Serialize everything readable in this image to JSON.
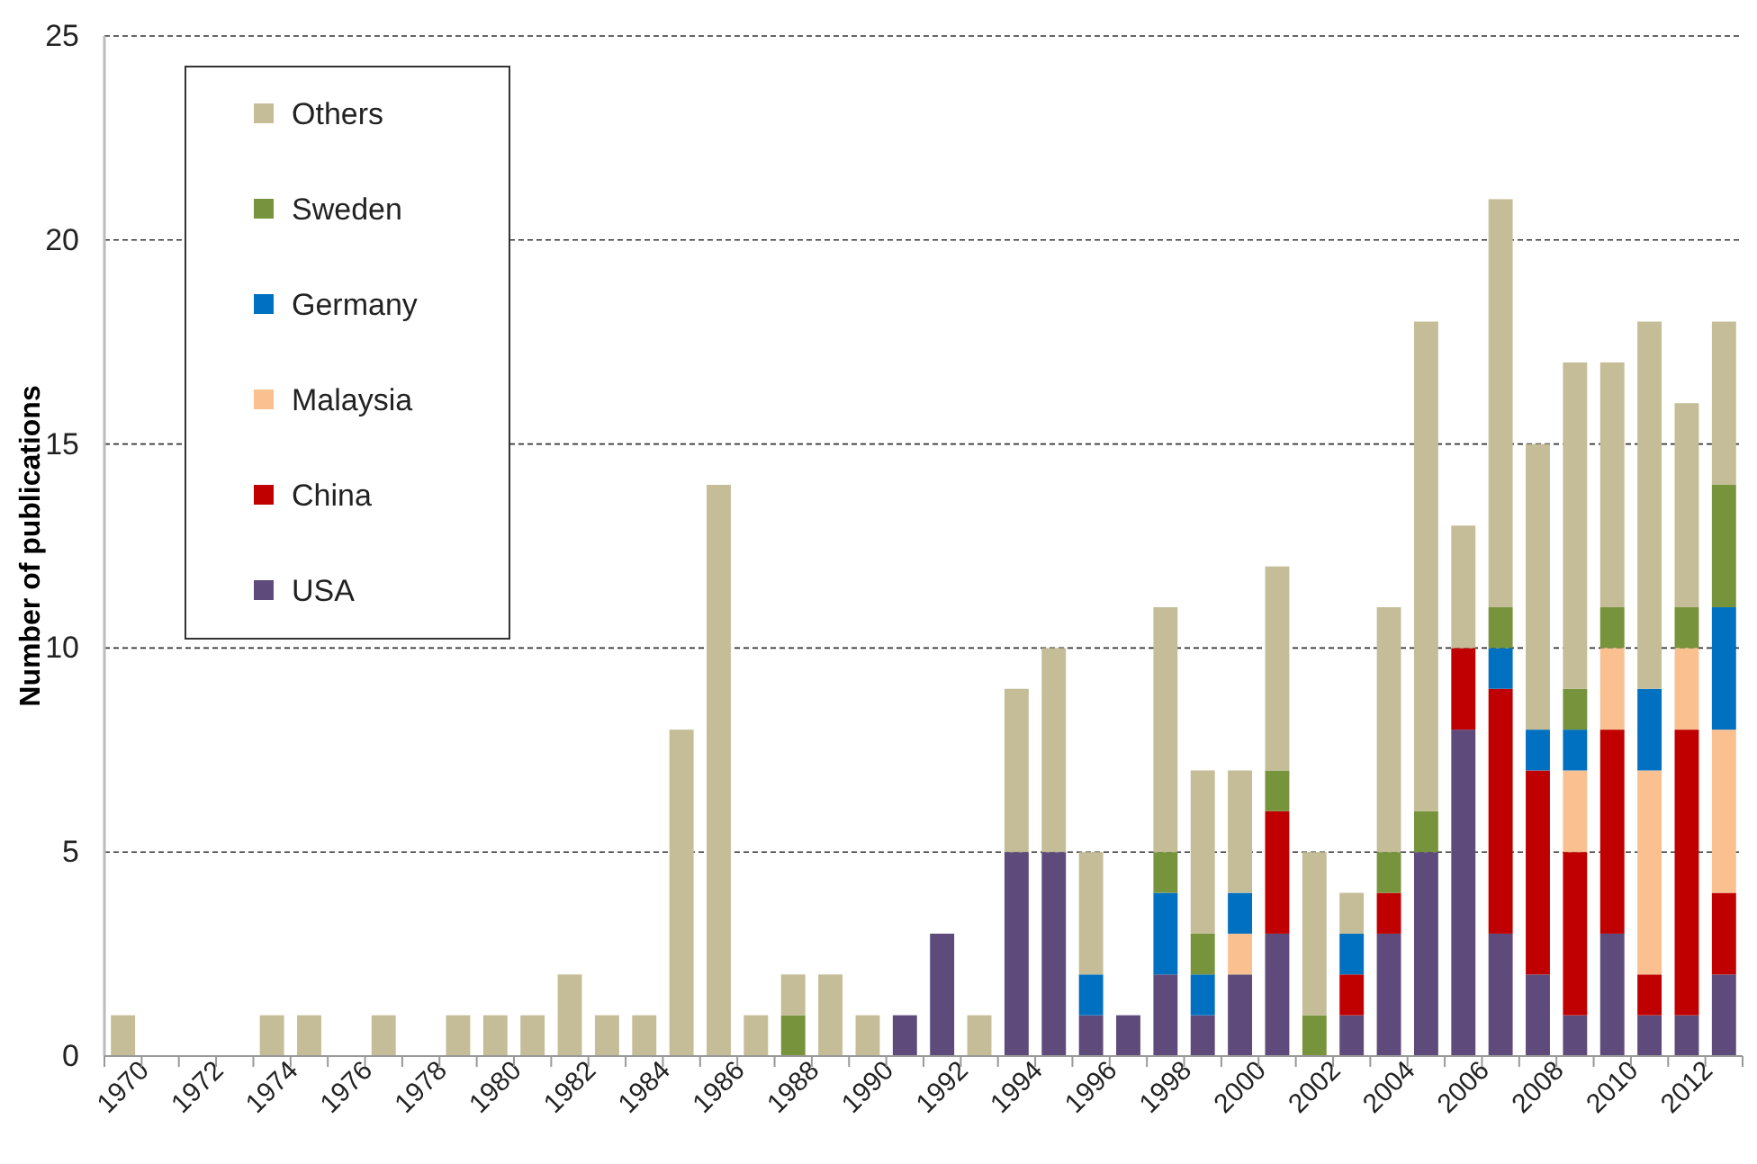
{
  "chart_data": {
    "type": "bar",
    "stacked": true,
    "ylabel": "Number of publications",
    "categories": [
      "1970",
      null,
      "1972",
      null,
      "1974",
      null,
      "1976",
      null,
      "1978",
      null,
      "1980",
      null,
      "1982",
      null,
      "1984",
      null,
      "1986",
      null,
      "1988",
      null,
      "1990",
      null,
      "1992",
      null,
      "1994",
      null,
      "1996",
      null,
      "1998",
      null,
      "2000",
      null,
      "2002",
      null,
      "2004",
      null,
      "2006",
      null,
      "2008",
      null,
      "2010",
      null,
      "2012",
      null
    ],
    "series": [
      {
        "name": "USA",
        "color": "#5f4b7b",
        "values": [
          0,
          0,
          0,
          0,
          0,
          0,
          0,
          0,
          0,
          0,
          0,
          0,
          0,
          0,
          0,
          0,
          0,
          0,
          0,
          0,
          0,
          1,
          3,
          0,
          5,
          5,
          1,
          1,
          2,
          1,
          2,
          3,
          0,
          1,
          3,
          5,
          8,
          3,
          2,
          1,
          3,
          1,
          1,
          2
        ]
      },
      {
        "name": "China",
        "color": "#c00000",
        "values": [
          0,
          0,
          0,
          0,
          0,
          0,
          0,
          0,
          0,
          0,
          0,
          0,
          0,
          0,
          0,
          0,
          0,
          0,
          0,
          0,
          0,
          0,
          0,
          0,
          0,
          0,
          0,
          0,
          0,
          0,
          0,
          3,
          0,
          1,
          1,
          0,
          2,
          6,
          5,
          4,
          5,
          1,
          7,
          2
        ]
      },
      {
        "name": "Malaysia",
        "color": "#fac090",
        "values": [
          0,
          0,
          0,
          0,
          0,
          0,
          0,
          0,
          0,
          0,
          0,
          0,
          0,
          0,
          0,
          0,
          0,
          0,
          0,
          0,
          0,
          0,
          0,
          0,
          0,
          0,
          0,
          0,
          0,
          0,
          1,
          0,
          0,
          0,
          0,
          0,
          0,
          0,
          0,
          2,
          2,
          5,
          2,
          4
        ]
      },
      {
        "name": "Germany",
        "color": "#0070c0",
        "values": [
          0,
          0,
          0,
          0,
          0,
          0,
          0,
          0,
          0,
          0,
          0,
          0,
          0,
          0,
          0,
          0,
          0,
          0,
          0,
          0,
          0,
          0,
          0,
          0,
          0,
          0,
          1,
          0,
          2,
          1,
          1,
          0,
          0,
          1,
          0,
          0,
          0,
          1,
          1,
          1,
          0,
          2,
          0,
          3
        ]
      },
      {
        "name": "Sweden",
        "color": "#77933c",
        "values": [
          0,
          0,
          0,
          0,
          0,
          0,
          0,
          0,
          0,
          0,
          0,
          0,
          0,
          0,
          0,
          0,
          0,
          0,
          1,
          0,
          0,
          0,
          0,
          0,
          0,
          0,
          0,
          0,
          1,
          1,
          0,
          1,
          1,
          0,
          1,
          1,
          0,
          1,
          0,
          1,
          1,
          0,
          1,
          3
        ]
      },
      {
        "name": "Others",
        "color": "#c4bd97",
        "values": [
          1,
          0,
          0,
          0,
          1,
          1,
          0,
          1,
          0,
          1,
          1,
          1,
          2,
          1,
          1,
          8,
          14,
          1,
          1,
          2,
          1,
          0,
          0,
          1,
          4,
          5,
          3,
          0,
          6,
          4,
          3,
          5,
          4,
          1,
          6,
          12,
          3,
          10,
          7,
          8,
          6,
          9,
          5,
          4
        ]
      }
    ],
    "ylim": [
      0,
      25
    ],
    "yticks": [
      0,
      5,
      10,
      15,
      20,
      25
    ],
    "grid": "y",
    "legend": "top left"
  }
}
